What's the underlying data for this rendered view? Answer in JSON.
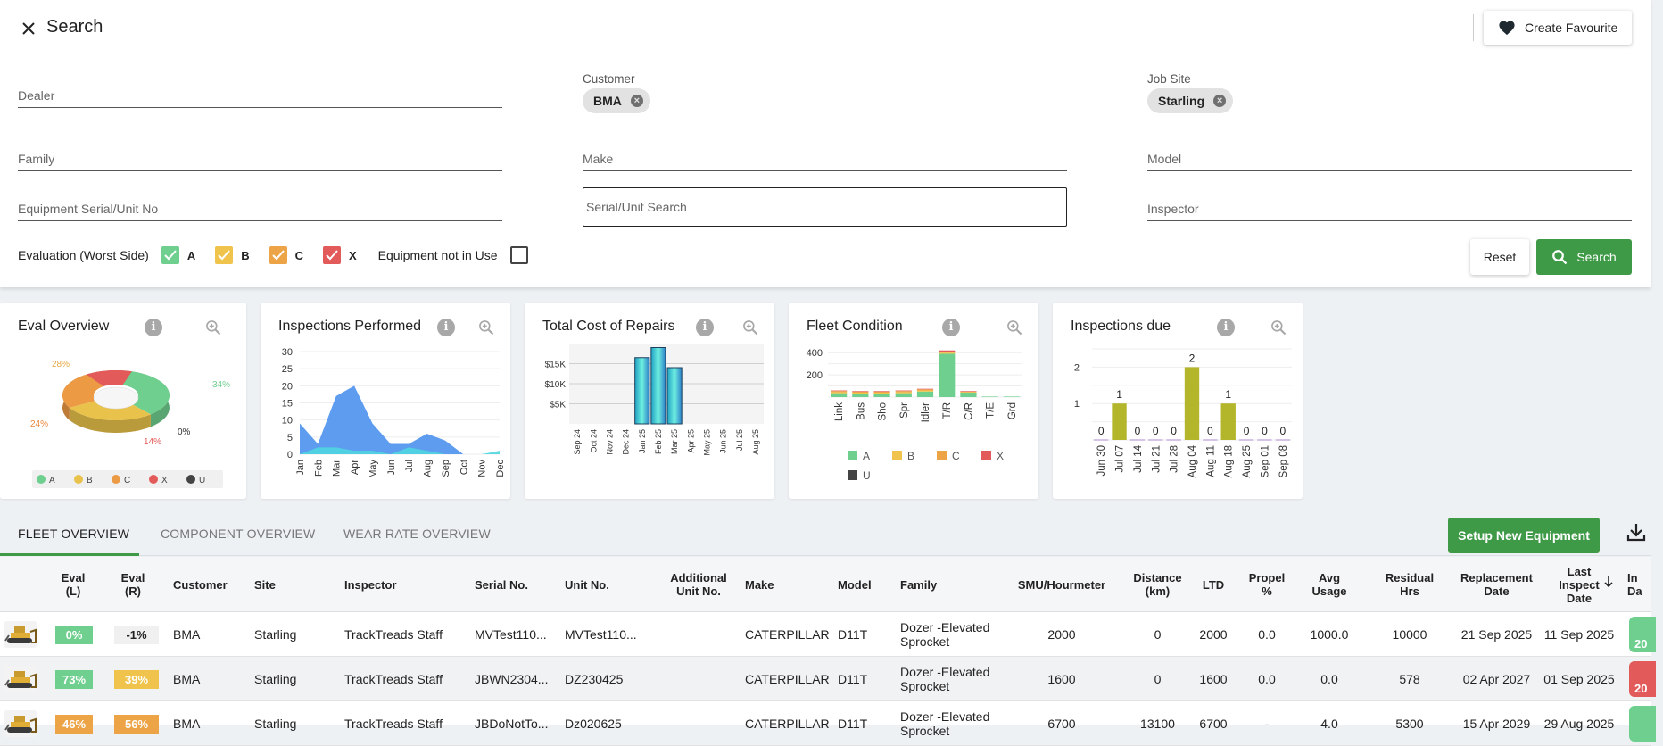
{
  "header": {
    "title": "Search",
    "create_favourite": "Create Favourite"
  },
  "filters": {
    "dealer_label": "Dealer",
    "customer_label": "Customer",
    "customer_chip": "BMA",
    "job_site_label": "Job Site",
    "job_site_chip": "Starling",
    "family_label": "Family",
    "make_label": "Make",
    "model_label": "Model",
    "serial_unit_label": "Equipment Serial/Unit No",
    "serial_unit_search_placeholder": "Serial/Unit Search",
    "inspector_label": "Inspector",
    "evaluation_label": "Evaluation (Worst Side)",
    "eval_options": [
      {
        "label": "A",
        "checked": true,
        "color": "#6fcf8f"
      },
      {
        "label": "B",
        "checked": true,
        "color": "#f0c44c"
      },
      {
        "label": "C",
        "checked": true,
        "color": "#eda447"
      },
      {
        "label": "X",
        "checked": true,
        "color": "#e35a5a"
      }
    ],
    "not_in_use_label": "Equipment not in Use",
    "reset_label": "Reset",
    "search_label": "Search"
  },
  "cards": {
    "eval_overview": {
      "title": "Eval Overview"
    },
    "inspections_performed": {
      "title": "Inspections Performed"
    },
    "total_cost": {
      "title": "Total Cost of Repairs"
    },
    "fleet_condition": {
      "title": "Fleet Condition"
    },
    "inspections_due": {
      "title": "Inspections due"
    }
  },
  "chart_data": [
    {
      "type": "pie",
      "title": "Eval Overview",
      "categories": [
        "A",
        "B",
        "C",
        "X",
        "U"
      ],
      "values": [
        34,
        28,
        24,
        14,
        0
      ],
      "labels": [
        "34%",
        "28%",
        "24%",
        "14%",
        "0%"
      ],
      "colors": [
        "#6fcf8f",
        "#e8c24a",
        "#ed9a45",
        "#e35a5a",
        "#444444"
      ],
      "legend": "bottom"
    },
    {
      "type": "area",
      "title": "Inspections Performed",
      "categories": [
        "Jan",
        "Feb",
        "Mar",
        "Apr",
        "May",
        "Jun",
        "Jul",
        "Aug",
        "Sep",
        "Oct",
        "Nov",
        "Dec"
      ],
      "series": [
        {
          "values": [
            9,
            3,
            17,
            20,
            9,
            3,
            3,
            6,
            4,
            0,
            0,
            0
          ],
          "color": "#5e9cf0"
        },
        {
          "values": [
            0,
            2,
            2,
            1,
            1,
            0,
            2,
            1,
            0,
            0,
            0,
            1
          ],
          "color": "#4fd6e0"
        }
      ],
      "yticks": [
        0,
        5,
        10,
        15,
        20,
        25,
        30
      ],
      "ylim": [
        0,
        30
      ]
    },
    {
      "type": "bar",
      "title": "Total Cost of Repairs",
      "categories": [
        "Sep 24",
        "Oct 24",
        "Nov 24",
        "Dec 24",
        "Jan 25",
        "Feb 25",
        "Mar 25",
        "Apr 25",
        "May 25",
        "Jun 25",
        "Jul 25",
        "Aug 25"
      ],
      "values": [
        0,
        0,
        0,
        0,
        16500,
        19000,
        14000,
        0,
        0,
        0,
        0,
        0
      ],
      "yticks": [
        "$5K",
        "$10K",
        "$15K"
      ],
      "ylim": [
        0,
        20000
      ]
    },
    {
      "type": "bar",
      "title": "Fleet Condition",
      "categories": [
        "Link",
        "Bus",
        "Sho",
        "Spr",
        "Idler",
        "T/R",
        "C/R",
        "T/E",
        "Grd"
      ],
      "series": [
        {
          "name": "A",
          "values": [
            35,
            30,
            30,
            35,
            50,
            390,
            40,
            5,
            5
          ],
          "color": "#6fcf8f"
        },
        {
          "name": "B",
          "values": [
            10,
            10,
            10,
            10,
            10,
            10,
            5,
            0,
            0
          ],
          "color": "#f0c44c"
        },
        {
          "name": "C",
          "values": [
            10,
            10,
            10,
            10,
            10,
            5,
            5,
            0,
            0
          ],
          "color": "#eda447"
        },
        {
          "name": "X",
          "values": [
            5,
            5,
            5,
            5,
            5,
            15,
            5,
            0,
            0
          ],
          "color": "#e35a5a"
        },
        {
          "name": "U",
          "values": [
            0,
            0,
            0,
            0,
            0,
            0,
            0,
            0,
            0
          ],
          "color": "#444444"
        }
      ],
      "yticks": [
        200,
        400
      ],
      "ylim": [
        0,
        450
      ],
      "legend": "bottom"
    },
    {
      "type": "bar",
      "title": "Inspections due",
      "categories": [
        "Jun 30",
        "Jul 07",
        "Jul 14",
        "Jul 21",
        "Jul 28",
        "Aug 04",
        "Aug 11",
        "Aug 18",
        "Aug 25",
        "Sep 01",
        "Sep 08"
      ],
      "values": [
        0,
        1,
        0,
        0,
        0,
        2,
        0,
        1,
        0,
        0,
        0
      ],
      "yticks": [
        1,
        2
      ],
      "ylim": [
        0,
        2.5
      ]
    }
  ],
  "tabs": [
    "FLEET OVERVIEW",
    "COMPONENT OVERVIEW",
    "WEAR RATE OVERVIEW"
  ],
  "setup_new_equipment": "Setup New Equipment",
  "table": {
    "headers": [
      "Eval\n(L)",
      "Eval\n(R)",
      "Customer",
      "Site",
      "Inspector",
      "Serial No.",
      "Unit No.",
      "Additional\nUnit No.",
      "Make",
      "Model",
      "Family",
      "SMU/Hourmeter",
      "Distance\n(km)",
      "LTD",
      "Propel\n%",
      "Avg\nUsage",
      "Residual\nHrs",
      "Replacement\nDate",
      "Last\nInspect\nDate",
      "In\nDa"
    ],
    "rows": [
      {
        "eval_l": "0%",
        "eval_r": "-1%",
        "customer": "BMA",
        "site": "Starling",
        "inspector": "TrackTreads Staff",
        "serial": "MVTest110...",
        "unit": "MVTest110...",
        "additional": "",
        "make": "CATERPILLAR",
        "model": "D11T",
        "family": "Dozer -Elevated Sprocket",
        "smu": "2000",
        "distance": "0",
        "ltd": "2000",
        "propel": "0.0",
        "avg": "1000.0",
        "residual": "10000",
        "replacement": "21 Sep 2025",
        "last_inspect": "11 Sep 2025",
        "edge": "20"
      },
      {
        "eval_l": "73%",
        "eval_r": "39%",
        "customer": "BMA",
        "site": "Starling",
        "inspector": "TrackTreads Staff",
        "serial": "JBWN2304...",
        "unit": "DZ230425",
        "additional": "",
        "make": "CATERPILLAR",
        "model": "D11T",
        "family": "Dozer -Elevated Sprocket",
        "smu": "1600",
        "distance": "0",
        "ltd": "1600",
        "propel": "0.0",
        "avg": "0.0",
        "residual": "578",
        "replacement": "02 Apr 2027",
        "last_inspect": "01 Sep 2025",
        "edge": "20"
      },
      {
        "eval_l": "46%",
        "eval_r": "56%",
        "customer": "BMA",
        "site": "Starling",
        "inspector": "TrackTreads Staff",
        "serial": "JBDoNotTo...",
        "unit": "Dz020625",
        "additional": "",
        "make": "CATERPILLAR",
        "model": "D11T",
        "family": "Dozer -Elevated Sprocket",
        "smu": "6700",
        "distance": "13100",
        "ltd": "6700",
        "propel": "-",
        "avg": "4.0",
        "residual": "5300",
        "replacement": "15 Apr 2029",
        "last_inspect": "29 Aug 2025",
        "edge": ""
      }
    ]
  }
}
